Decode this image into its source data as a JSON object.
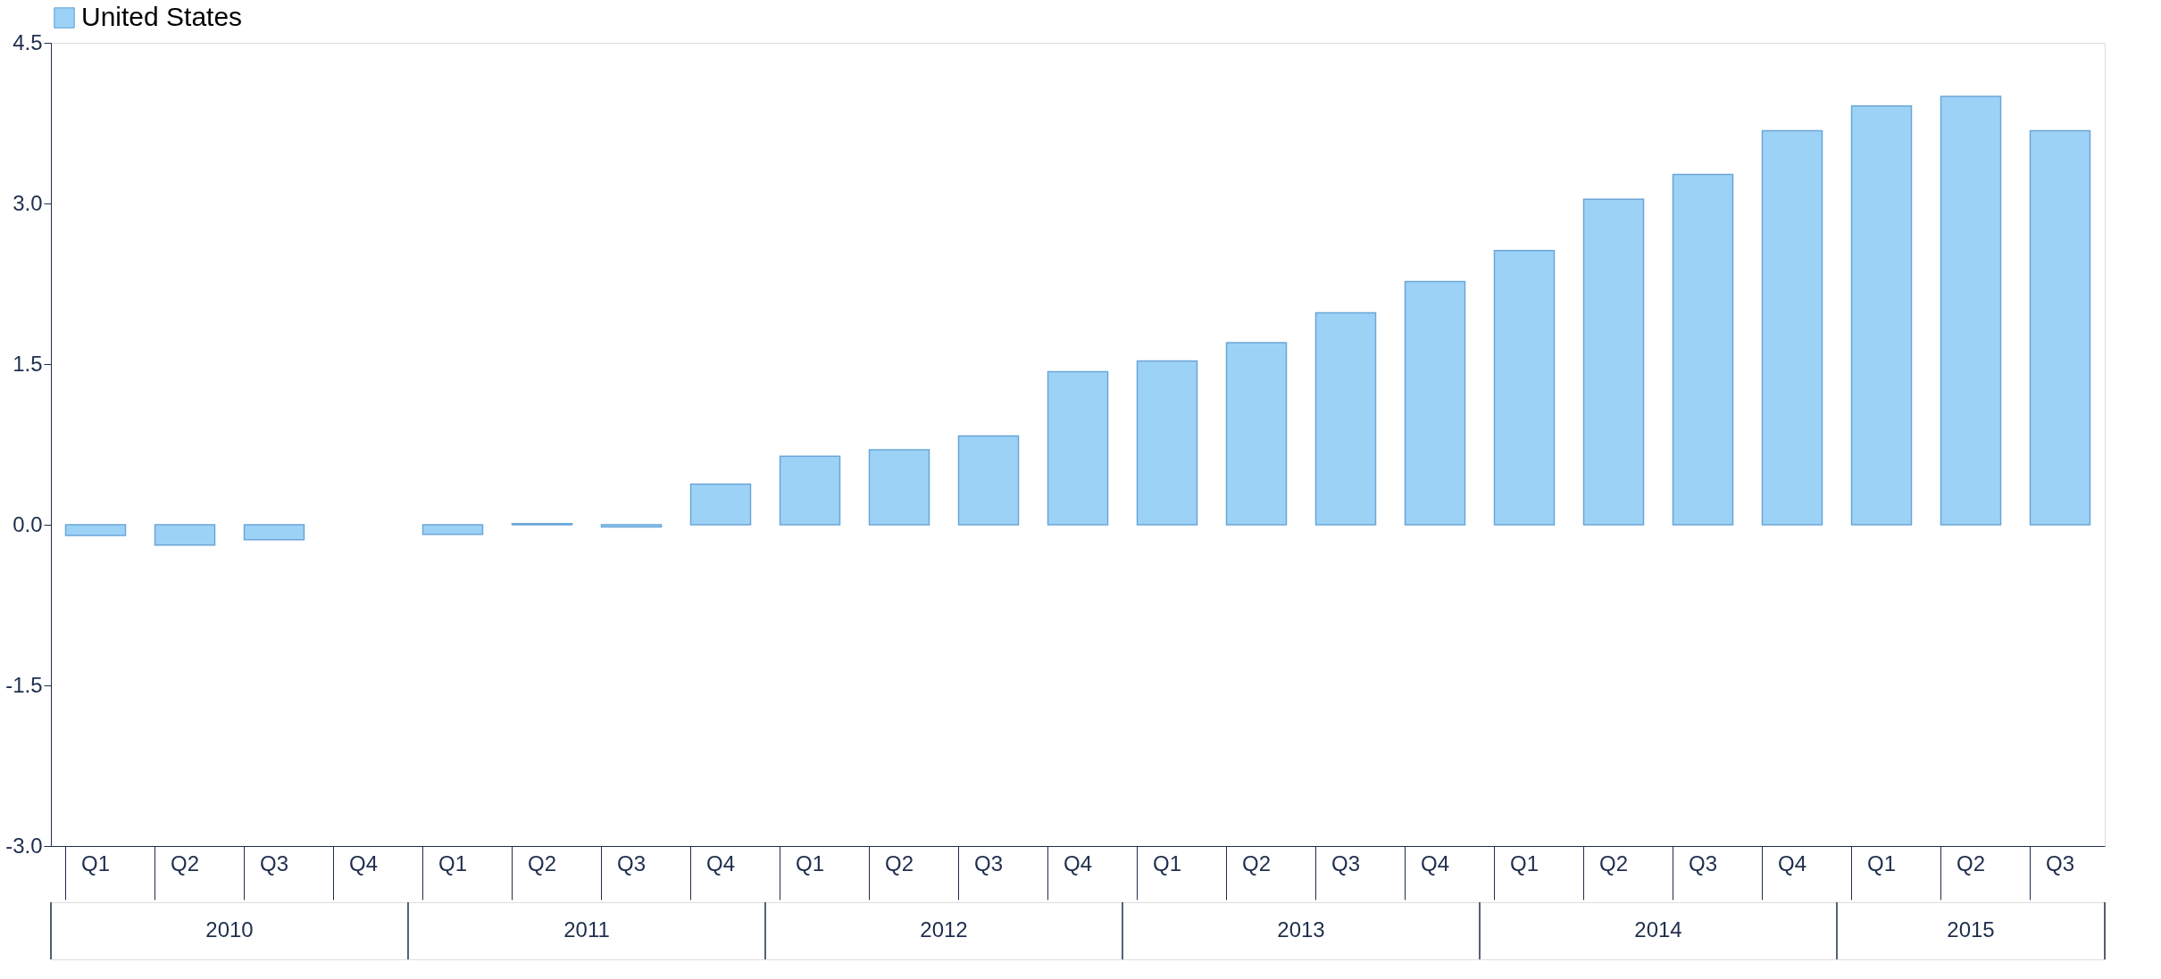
{
  "chart_data": {
    "type": "bar",
    "categories": [
      "Q1",
      "Q2",
      "Q3",
      "Q4",
      "Q1",
      "Q2",
      "Q3",
      "Q4",
      "Q1",
      "Q2",
      "Q3",
      "Q4",
      "Q1",
      "Q2",
      "Q3",
      "Q4",
      "Q1",
      "Q2",
      "Q3",
      "Q4",
      "Q1",
      "Q2",
      "Q3"
    ],
    "series": [
      {
        "name": "United States",
        "color": "#9dd2f7",
        "values": [
          -0.1,
          -0.19,
          -0.14,
          null,
          -0.09,
          0.01,
          -0.02,
          0.38,
          0.64,
          0.7,
          0.83,
          1.43,
          1.53,
          1.7,
          1.98,
          2.27,
          2.56,
          3.04,
          3.27,
          3.68,
          3.91,
          4.0,
          3.68
        ]
      }
    ],
    "annotations": [
      "2010",
      "2011",
      "2012",
      "2013",
      "2014",
      "2015"
    ],
    "ylim": [
      -3.0,
      4.5
    ],
    "yticks": [
      {
        "value": -3.0,
        "label": "-3.0"
      },
      {
        "value": -1.5,
        "label": "-1.5"
      },
      {
        "value": 0,
        "label": "0.0"
      },
      {
        "value": 1.5,
        "label": "1.5"
      },
      {
        "value": 3.0,
        "label": "3.0"
      },
      {
        "value": 4.5,
        "label": "4.5"
      }
    ],
    "grid": false,
    "legend": "top"
  }
}
